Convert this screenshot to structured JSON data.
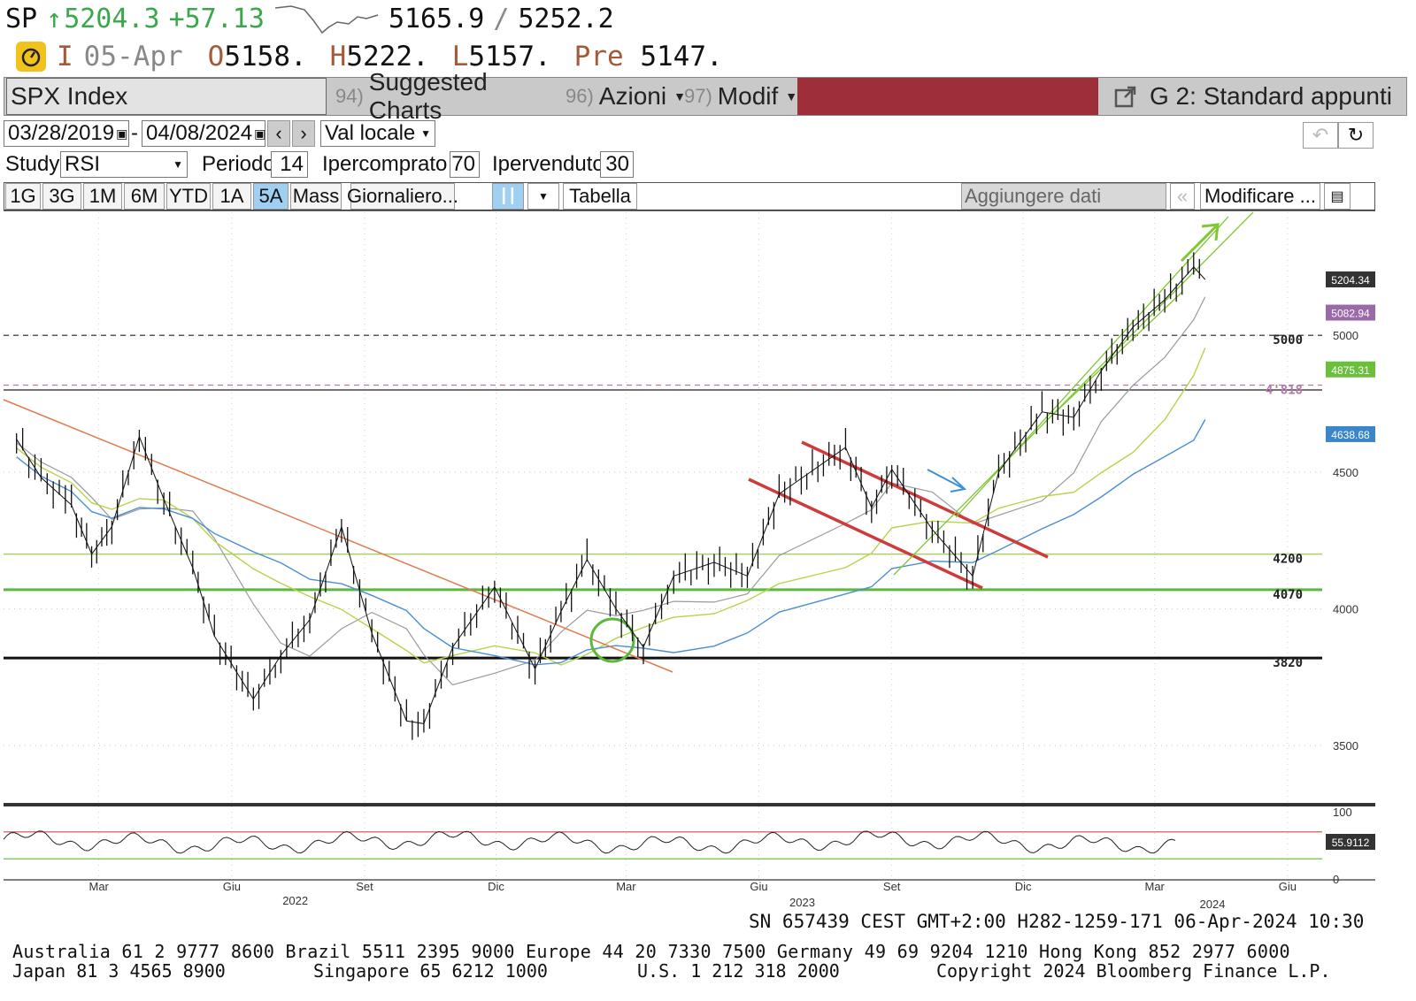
{
  "ticker": {
    "symbol": "SP",
    "arrow": "↑",
    "last": "5204.3",
    "change": "+57.13",
    "range_low": "5165.9",
    "range_sep": "/",
    "range_high": "5252.2"
  },
  "quote_row": {
    "flag": "I",
    "date": "05-Apr",
    "open_label": "O",
    "open": "5158.",
    "high_label": "H",
    "high": "5222.",
    "low_label": "L",
    "low": "5157.",
    "prev_label": "Pre",
    "prev": "5147."
  },
  "command_bar": {
    "security": "SPX Index",
    "menu1_num": "94)",
    "menu1": "Suggested Charts",
    "menu2_num": "96)",
    "menu2": "Azioni",
    "menu3_num": "97)",
    "menu3": "Modif",
    "panel": "G 2: Standard appunti"
  },
  "toolbar": {
    "date_from": "03/28/2019",
    "date_sep": "-",
    "date_to": "04/08/2024",
    "currency": "Val locale",
    "study_label": "Study",
    "study_value": "RSI",
    "period_label": "Periodo",
    "period_value": "14",
    "overbought_label": "Ipercomprato",
    "overbought_value": "70",
    "oversold_label": "Ipervenduto",
    "oversold_value": "30",
    "ranges": [
      "1G",
      "3G",
      "1M",
      "6M",
      "YTD",
      "1A",
      "5A",
      "Mass"
    ],
    "active_range": "5A",
    "frequency": "Giornaliero...",
    "table_button": "Tabella",
    "add_data": "Aggiungere dati",
    "modify": "Modificare ..."
  },
  "chart_data": {
    "type": "line",
    "x_ticks": [
      "Mar",
      "Giu",
      "Set",
      "Dic",
      "Mar",
      "Giu",
      "Set",
      "Dic",
      "Mar",
      "Giu"
    ],
    "years": [
      "2022",
      "2023",
      "2024"
    ],
    "y_ticks": [
      5000,
      4500,
      4000,
      3500
    ],
    "ylim": [
      3300,
      5450
    ],
    "series": [
      {
        "name": "SPX",
        "points": [
          [
            "2022-01-03",
            4620
          ],
          [
            "2022-01-20",
            4480
          ],
          [
            "2022-02-10",
            4380
          ],
          [
            "2022-02-24",
            4200
          ],
          [
            "2022-03-10",
            4300
          ],
          [
            "2022-03-29",
            4630
          ],
          [
            "2022-04-15",
            4400
          ],
          [
            "2022-05-05",
            4150
          ],
          [
            "2022-05-20",
            3900
          ],
          [
            "2022-06-16",
            3670
          ],
          [
            "2022-07-05",
            3830
          ],
          [
            "2022-07-25",
            3960
          ],
          [
            "2022-08-16",
            4300
          ],
          [
            "2022-09-06",
            3910
          ],
          [
            "2022-09-30",
            3590
          ],
          [
            "2022-10-12",
            3580
          ],
          [
            "2022-11-01",
            3860
          ],
          [
            "2022-11-30",
            4080
          ],
          [
            "2022-12-28",
            3780
          ],
          [
            "2023-01-15",
            3990
          ],
          [
            "2023-02-02",
            4180
          ],
          [
            "2023-02-22",
            4000
          ],
          [
            "2023-03-13",
            3860
          ],
          [
            "2023-04-03",
            4120
          ],
          [
            "2023-05-01",
            4170
          ],
          [
            "2023-05-24",
            4120
          ],
          [
            "2023-06-15",
            4420
          ],
          [
            "2023-07-31",
            4590
          ],
          [
            "2023-08-18",
            4370
          ],
          [
            "2023-09-01",
            4510
          ],
          [
            "2023-09-29",
            4290
          ],
          [
            "2023-10-27",
            4120
          ],
          [
            "2023-11-14",
            4500
          ],
          [
            "2023-12-14",
            4720
          ],
          [
            "2024-01-05",
            4700
          ],
          [
            "2024-01-24",
            4870
          ],
          [
            "2024-02-15",
            5030
          ],
          [
            "2024-03-08",
            5130
          ],
          [
            "2024-03-28",
            5250
          ],
          [
            "2024-04-05",
            5204
          ]
        ]
      }
    ],
    "price_labels": [
      {
        "value": 5204.34,
        "label": "5204.34",
        "color": "#333333"
      },
      {
        "value": 5082.94,
        "label": "5082.94",
        "color": "#9a6aa8"
      },
      {
        "value": 4875.31,
        "label": "4875.31",
        "color": "#6bbf3a"
      },
      {
        "value": 4638.68,
        "label": "4638.68",
        "color": "#3a86c8"
      }
    ],
    "levels": [
      {
        "value": 5000,
        "label": "5000"
      },
      {
        "value": 4818,
        "label": "4'818"
      },
      {
        "value": 4200,
        "label": "4200"
      },
      {
        "value": 4070,
        "label": "4070"
      },
      {
        "value": 3820,
        "label": "3820"
      }
    ],
    "rsi": {
      "value": "55.9112",
      "ticks": [
        100,
        0
      ],
      "overbought": 70,
      "oversold": 30
    },
    "grid": true,
    "colors": {
      "price": "#000000",
      "ma_fast": "#9a9a9a",
      "ma_mid": "#b5d44a",
      "ma_slow": "#4b8fd1",
      "channel_red": "#cf3b3b",
      "channel_green": "#7ec832",
      "downtrend": "#e07b4f"
    }
  },
  "status_line": "SN 657439 CEST GMT+2:00 H282-1259-171 06-Apr-2024 10:30",
  "footer": {
    "line1": "Australia 61 2 9777 8600 Brazil 5511 2395 9000 Europe 44 20 7330 7500 Germany 49 69 9204 1210 Hong Kong 852 2977 6000",
    "line2_a": "Japan 81 3 4565 8900",
    "line2_b": "Singapore 65 6212 1000",
    "line2_c": "U.S. 1 212 318 2000",
    "line2_d": "Copyright 2024 Bloomberg Finance L.P."
  }
}
